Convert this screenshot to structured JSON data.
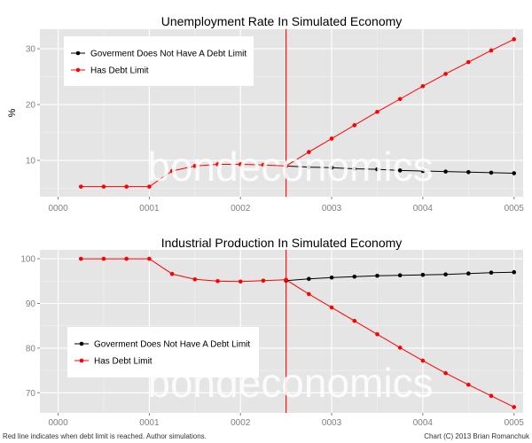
{
  "watermark": "bondeconomics",
  "footer": {
    "left": "Red line indicates when debt limit is reached. Author simulations.",
    "right": "Chart (C) 2013 Brian Romanchuk"
  },
  "colors": {
    "panel_bg": "#e5e5e5",
    "grid": "#ffffff",
    "no_limit_series": "#000000",
    "debt_limit_series": "#ff0000",
    "debt_limit_marker": "#ff0000"
  },
  "chart_data": [
    {
      "type": "line",
      "title": "Unemployment Rate In Simulated Economy",
      "xlabel": "",
      "ylabel": "%",
      "xlim": [
        -0.2,
        5.1
      ],
      "ylim": [
        3.5,
        33.5
      ],
      "xticks": [
        0,
        1,
        2,
        3,
        4,
        5
      ],
      "xtick_labels": [
        "0000",
        "0001",
        "0002",
        "0003",
        "0004",
        "0005"
      ],
      "yticks": [
        10,
        20,
        30
      ],
      "ytick_labels": [
        "10",
        "20",
        "30"
      ],
      "grid": true,
      "legend_position": "top-left",
      "debt_limit_x": 2.5,
      "series": [
        {
          "name": "Goverment Does Not Have A Debt Limit",
          "color": "#000000",
          "x": [
            2.5,
            2.75,
            3.0,
            3.25,
            3.5,
            3.75,
            4.0,
            4.25,
            4.5,
            4.75,
            5.0
          ],
          "values": [
            9.0,
            8.8,
            8.7,
            8.5,
            8.4,
            8.2,
            8.1,
            8.0,
            7.9,
            7.8,
            7.7
          ]
        },
        {
          "name": "Has Debt Limit",
          "color": "#ff0000",
          "x": [
            0.25,
            0.5,
            0.75,
            1.0,
            1.25,
            1.5,
            1.75,
            2.0,
            2.25,
            2.5,
            2.75,
            3.0,
            3.25,
            3.5,
            3.75,
            4.0,
            4.25,
            4.5,
            4.75,
            5.0
          ],
          "values": [
            5.3,
            5.3,
            5.3,
            5.3,
            8.1,
            9.0,
            9.3,
            9.3,
            9.2,
            9.0,
            11.5,
            13.9,
            16.3,
            18.7,
            21.0,
            23.3,
            25.5,
            27.6,
            29.7,
            31.7
          ]
        }
      ]
    },
    {
      "type": "line",
      "title": "Industrial Production In Simulated Economy",
      "xlabel": "",
      "ylabel": "",
      "xlim": [
        -0.2,
        5.1
      ],
      "ylim": [
        65.5,
        102
      ],
      "xticks": [
        0,
        1,
        2,
        3,
        4,
        5
      ],
      "xtick_labels": [
        "0000",
        "0001",
        "0002",
        "0003",
        "0004",
        "0005"
      ],
      "yticks": [
        70,
        80,
        90,
        100
      ],
      "ytick_labels": [
        "70",
        "80",
        "90",
        "100"
      ],
      "grid": true,
      "legend_position": "bottom-left",
      "debt_limit_x": 2.5,
      "series": [
        {
          "name": "Goverment Does Not Have A Debt Limit",
          "color": "#000000",
          "x": [
            2.5,
            2.75,
            3.0,
            3.25,
            3.5,
            3.75,
            4.0,
            4.25,
            4.5,
            4.75,
            5.0
          ],
          "values": [
            95.1,
            95.5,
            95.8,
            96.0,
            96.2,
            96.3,
            96.4,
            96.5,
            96.7,
            96.9,
            97.0
          ]
        },
        {
          "name": "Has Debt Limit",
          "color": "#ff0000",
          "x": [
            0.25,
            0.5,
            0.75,
            1.0,
            1.25,
            1.5,
            1.75,
            2.0,
            2.25,
            2.5,
            2.75,
            3.0,
            3.25,
            3.5,
            3.75,
            4.0,
            4.25,
            4.5,
            4.75,
            5.0
          ],
          "values": [
            100.0,
            100.0,
            100.0,
            100.0,
            96.6,
            95.4,
            95.0,
            94.9,
            95.1,
            95.3,
            92.1,
            89.1,
            86.1,
            83.1,
            80.1,
            77.2,
            74.4,
            71.8,
            69.3,
            66.8
          ]
        }
      ]
    }
  ]
}
